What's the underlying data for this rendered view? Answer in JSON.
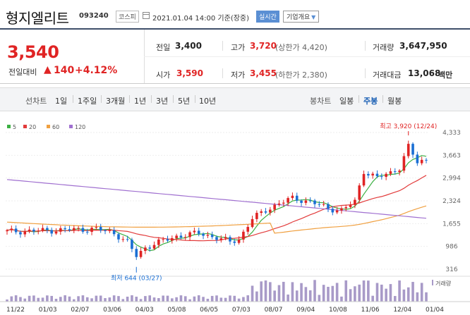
{
  "header": {
    "title": "형지엘리트",
    "code": "093240",
    "market": "코스피",
    "datetime": "2021.01.04 14:00  기준(장중)",
    "realtime": "실시간",
    "company_info": "기업개요"
  },
  "price": {
    "current": "3,540",
    "diff_label": "전일대비",
    "diff_arrow": "▲",
    "diff_value": "140",
    "diff_pct": "+4.12%"
  },
  "metrics": {
    "prev_label": "전일",
    "prev_value": "3,400",
    "high_label": "고가",
    "high_value": "3,720",
    "high_limit": "(상한가 4,420)",
    "volume_label": "거래량",
    "volume_value": "3,647,950",
    "open_label": "시가",
    "open_value": "3,590",
    "low_label": "저가",
    "low_value": "3,455",
    "low_limit": "(하한가 2,380)",
    "amount_label": "거래대금",
    "amount_value": "13,068",
    "amount_unit": "백만"
  },
  "tabs": {
    "line_chart": "선차트",
    "periods": [
      "1일",
      "1주일",
      "3개월",
      "1년",
      "3년",
      "5년",
      "10년"
    ],
    "candle_chart": "봉차트",
    "candles": [
      "일봉",
      "주봉",
      "월봉"
    ],
    "active_candle": "주봉"
  },
  "chart_data": {
    "type": "candlestick",
    "legend": [
      {
        "name": "5",
        "color": "#3cb043"
      },
      {
        "name": "20",
        "color": "#e23b3b"
      },
      {
        "name": "60",
        "color": "#f0a040"
      },
      {
        "name": "120",
        "color": "#a070d0"
      }
    ],
    "yticks": [
      "4,333",
      "3,663",
      "2,994",
      "2,324",
      "1,655",
      "986",
      "316"
    ],
    "ylim": [
      316,
      4333
    ],
    "xticks": [
      "11/22",
      "01/03",
      "02/07",
      "03/06",
      "04/03",
      "05/08",
      "06/05",
      "07/03",
      "08/07",
      "09/04",
      "10/08",
      "11/06",
      "12/04",
      "01/04"
    ],
    "high_annotation": "최고 3,920 (12/24)",
    "low_annotation": "최저 644 (03/27)",
    "volume_label": "거래량",
    "up_color": "#e02424",
    "down_color": "#1a6fd4"
  }
}
